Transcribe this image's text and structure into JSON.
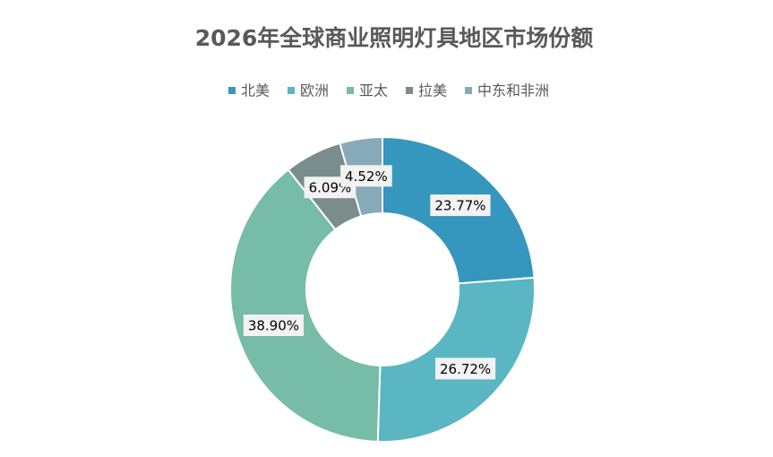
{
  "chart_data": {
    "type": "donut",
    "title": "2026年全球商业照明灯具地区市场份额",
    "categories": [
      "北美",
      "欧洲",
      "亚太",
      "拉美",
      "中东和非洲"
    ],
    "values": [
      23.77,
      26.72,
      38.9,
      6.09,
      4.52
    ],
    "value_labels": [
      "23.77%",
      "26.72%",
      "38.90%",
      "6.09%",
      "4.52%"
    ],
    "colors": [
      "#3597bd",
      "#5ab6c2",
      "#76bca6",
      "#7a8c8c",
      "#86aab8"
    ],
    "legend": "top"
  }
}
